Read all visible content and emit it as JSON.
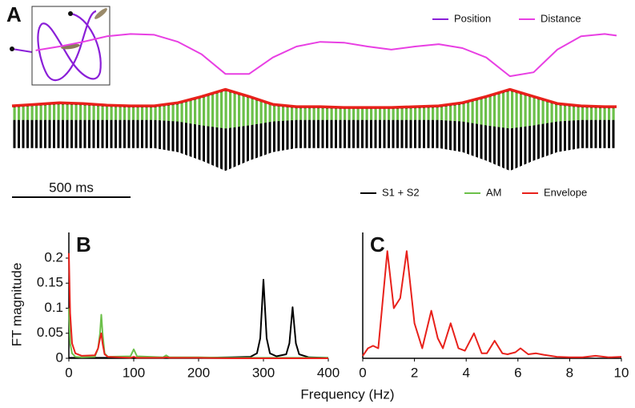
{
  "chart_data": [
    {
      "type": "signal",
      "panel": "A",
      "x": [
        0,
        100,
        200,
        300,
        400,
        500,
        600,
        700,
        800,
        900,
        1000,
        1100,
        1200,
        1300,
        1400,
        1500,
        1600,
        1700,
        1800,
        1900,
        2000,
        2100,
        2200,
        2300,
        2400,
        2500,
        2550
      ],
      "ylim": [
        0,
        200
      ],
      "scalebar": {
        "value": 500,
        "label": "500 ms"
      },
      "series": [
        {
          "name": "Position",
          "color": "#8a1fd8"
        },
        {
          "name": "Distance",
          "color": "#e83fe3",
          "values": [
            null,
            156,
            161,
            167,
            174,
            177,
            176,
            167,
            151,
            126,
            126,
            147,
            161,
            167,
            166,
            161,
            157,
            161,
            164,
            159,
            147,
            123,
            128,
            157,
            174,
            177,
            175
          ]
        },
        {
          "name": "S1 + S2",
          "color": "#000000",
          "upper": [
            85,
            87,
            89,
            88,
            86,
            85,
            85,
            89,
            97,
            106,
            97,
            87,
            84,
            84,
            83,
            83,
            83,
            84,
            85,
            89,
            97,
            106,
            97,
            88,
            85,
            84,
            84
          ],
          "lower": [
            31,
            31,
            31,
            31,
            31,
            31,
            31,
            26,
            15,
            2,
            15,
            26,
            31,
            31,
            31,
            31,
            31,
            31,
            31,
            26,
            15,
            2,
            15,
            26,
            31,
            31,
            31
          ]
        },
        {
          "name": "AM",
          "color": "#6cc04a",
          "upper": [
            83,
            85,
            87,
            86,
            84,
            83,
            83,
            87,
            95,
            104,
            95,
            85,
            82,
            82,
            81,
            81,
            81,
            82,
            83,
            87,
            95,
            104,
            95,
            86,
            83,
            82,
            82
          ],
          "lower": [
            67,
            67,
            67,
            67,
            67,
            67,
            67,
            65,
            60,
            56,
            60,
            65,
            67,
            67,
            67,
            67,
            67,
            67,
            67,
            65,
            60,
            56,
            60,
            65,
            67,
            67,
            67
          ]
        },
        {
          "name": "Envelope",
          "color": "#e8211b",
          "values": [
            85,
            87,
            89,
            88,
            86,
            85,
            85,
            89,
            97,
            106,
            97,
            87,
            84,
            84,
            83,
            83,
            83,
            84,
            85,
            89,
            97,
            106,
            97,
            88,
            85,
            84,
            84
          ]
        }
      ]
    },
    {
      "type": "line",
      "panel": "B",
      "ylabel": "FT magnitude",
      "xlabel": "Frequency (Hz)",
      "xlim": [
        0,
        400
      ],
      "ylim": [
        0,
        0.22
      ],
      "xticks": [
        0,
        100,
        200,
        300,
        400
      ],
      "yticks": [
        0,
        0.05,
        0.1,
        0.15,
        0.2
      ],
      "x": [
        0,
        2,
        5,
        10,
        20,
        40,
        45,
        48,
        50,
        52,
        55,
        60,
        95,
        100,
        105,
        145,
        150,
        155,
        200,
        250,
        280,
        290,
        295,
        300,
        305,
        310,
        320,
        335,
        340,
        345,
        350,
        355,
        370,
        400
      ],
      "series": [
        {
          "name": "S1 + S2",
          "color": "#000000",
          "values": [
            0.001,
            0.001,
            0.001,
            0.001,
            0.001,
            0.001,
            0.001,
            0.001,
            0.001,
            0.001,
            0.001,
            0.001,
            0.001,
            0.001,
            0.001,
            0.001,
            0.001,
            0.001,
            0.001,
            0.002,
            0.003,
            0.01,
            0.04,
            0.157,
            0.04,
            0.01,
            0.004,
            0.008,
            0.03,
            0.102,
            0.03,
            0.008,
            0.002,
            0.001
          ]
        },
        {
          "name": "AM",
          "color": "#6cc04a",
          "values": [
            0.1,
            0.03,
            0.01,
            0.003,
            0.002,
            0.003,
            0.02,
            0.05,
            0.087,
            0.05,
            0.01,
            0.003,
            0.004,
            0.018,
            0.004,
            0.002,
            0.006,
            0.002,
            0.002,
            0.001,
            0.001,
            0.001,
            0.001,
            0.001,
            0.001,
            0.001,
            0.001,
            0.001,
            0.001,
            0.001,
            0.001,
            0.001,
            0.001,
            0.001
          ]
        },
        {
          "name": "Envelope",
          "color": "#e8211b",
          "values": [
            0.21,
            0.09,
            0.03,
            0.01,
            0.005,
            0.006,
            0.02,
            0.04,
            0.05,
            0.03,
            0.008,
            0.003,
            0.001,
            0.003,
            0.001,
            0.001,
            0.002,
            0.001,
            0.001,
            0,
            0,
            0,
            0,
            0,
            0,
            0,
            0,
            0,
            0,
            0,
            0,
            0,
            0,
            0
          ]
        }
      ]
    },
    {
      "type": "line",
      "panel": "C",
      "xlim": [
        0,
        10
      ],
      "ylim": [
        0,
        0.22
      ],
      "xticks": [
        0,
        2,
        4,
        6,
        8,
        10
      ],
      "x": [
        0,
        0.2,
        0.4,
        0.6,
        0.95,
        1.2,
        1.45,
        1.7,
        2.0,
        2.3,
        2.65,
        2.9,
        3.1,
        3.4,
        3.7,
        3.95,
        4.3,
        4.6,
        4.8,
        5.1,
        5.4,
        5.6,
        5.9,
        6.1,
        6.4,
        6.7,
        7,
        7.5,
        8,
        8.5,
        9,
        9.5,
        10
      ],
      "series": [
        {
          "name": "Envelope",
          "color": "#e8211b",
          "values": [
            0.005,
            0.02,
            0.025,
            0.02,
            0.214,
            0.1,
            0.12,
            0.214,
            0.07,
            0.02,
            0.095,
            0.04,
            0.02,
            0.07,
            0.02,
            0.015,
            0.05,
            0.01,
            0.01,
            0.035,
            0.01,
            0.008,
            0.012,
            0.02,
            0.008,
            0.01,
            0.007,
            0.003,
            0.002,
            0.002,
            0.005,
            0.002,
            0.003
          ]
        }
      ]
    }
  ]
}
